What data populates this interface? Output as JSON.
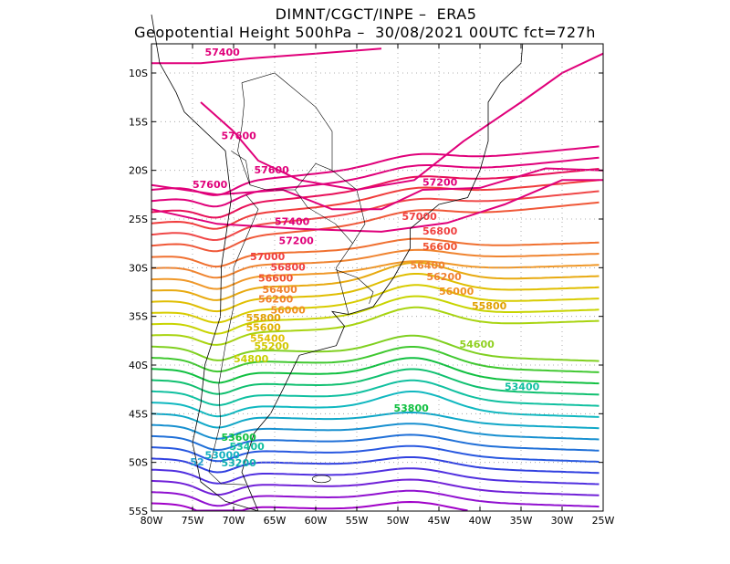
{
  "header": {
    "line1": "DIMNT/CGCT/INPE –  ERA5",
    "line2": "Geopotential Height 500hPa –  30/08/2021 00UTC fct=727h"
  },
  "axes": {
    "lon_labels": [
      "80W",
      "75W",
      "70W",
      "65W",
      "60W",
      "55W",
      "50W",
      "45W",
      "40W",
      "35W",
      "30W",
      "25W"
    ],
    "lat_labels": [
      "10S",
      "15S",
      "20S",
      "25S",
      "30S",
      "35S",
      "40S",
      "45S",
      "50S",
      "55S"
    ],
    "lon_range": [
      -80,
      -25
    ],
    "lat_range": [
      -55,
      -7
    ],
    "grid": "dotted"
  },
  "map": {
    "variable": "Geopotential Height 500hPa",
    "contour_labels": [
      {
        "text": "57400",
        "value": 57400,
        "color": "#e0007a",
        "lon": -73.5,
        "lat": -8.2
      },
      {
        "text": "57600",
        "value": 57600,
        "color": "#e0007a",
        "lon": -71.5,
        "lat": -16.8
      },
      {
        "text": "57600",
        "value": 57600,
        "color": "#e0007a",
        "lon": -67.5,
        "lat": -20.3
      },
      {
        "text": "57600",
        "value": 57600,
        "color": "#e0007a",
        "lon": -75.0,
        "lat": -21.8
      },
      {
        "text": "57400",
        "value": 57400,
        "color": "#e0007a",
        "lon": -65.0,
        "lat": -25.6
      },
      {
        "text": "57200",
        "value": 57200,
        "color": "#e0007a",
        "lon": -47.0,
        "lat": -21.6
      },
      {
        "text": "57200",
        "value": 57200,
        "color": "#e0007a",
        "lon": -64.5,
        "lat": -27.6
      },
      {
        "text": "57000",
        "value": 57000,
        "color": "#f04040",
        "lon": -49.5,
        "lat": -25.1
      },
      {
        "text": "57000",
        "value": 57000,
        "color": "#f04040",
        "lon": -68.0,
        "lat": -29.2
      },
      {
        "text": "56800",
        "value": 56800,
        "color": "#f04040",
        "lon": -47.0,
        "lat": -26.6
      },
      {
        "text": "56800",
        "value": 56800,
        "color": "#f04040",
        "lon": -65.5,
        "lat": -30.3
      },
      {
        "text": "56600",
        "value": 56600,
        "color": "#f05030",
        "lon": -47.0,
        "lat": -28.2
      },
      {
        "text": "56600",
        "value": 56600,
        "color": "#f05030",
        "lon": -67.0,
        "lat": -31.4
      },
      {
        "text": "56400",
        "value": 56400,
        "color": "#f08030",
        "lon": -48.5,
        "lat": -30.1
      },
      {
        "text": "56400",
        "value": 56400,
        "color": "#f08030",
        "lon": -66.5,
        "lat": -32.6
      },
      {
        "text": "56200",
        "value": 56200,
        "color": "#f08030",
        "lon": -46.5,
        "lat": -31.3
      },
      {
        "text": "56200",
        "value": 56200,
        "color": "#f08030",
        "lon": -67.0,
        "lat": -33.6
      },
      {
        "text": "56000",
        "value": 56000,
        "color": "#f09020",
        "lon": -45.0,
        "lat": -32.8
      },
      {
        "text": "56000",
        "value": 56000,
        "color": "#f09020",
        "lon": -65.5,
        "lat": -34.7
      },
      {
        "text": "55800",
        "value": 55800,
        "color": "#e0a000",
        "lon": -41.0,
        "lat": -34.3
      },
      {
        "text": "55800",
        "value": 55800,
        "color": "#e0a000",
        "lon": -68.5,
        "lat": -35.5
      },
      {
        "text": "55600",
        "value": 55600,
        "color": "#e0b000",
        "lon": -68.5,
        "lat": -36.5
      },
      {
        "text": "55400",
        "value": 55400,
        "color": "#e0c000",
        "lon": -68.0,
        "lat": -37.6
      },
      {
        "text": "55200",
        "value": 55200,
        "color": "#d0c800",
        "lon": -67.5,
        "lat": -38.4
      },
      {
        "text": "54800",
        "value": 54800,
        "color": "#c8d000",
        "lon": -70.0,
        "lat": -39.7
      },
      {
        "text": "54600",
        "value": 54600,
        "color": "#90d020",
        "lon": -42.5,
        "lat": -38.2
      },
      {
        "text": "53400",
        "value": 53400,
        "color": "#10c0a0",
        "lon": -37.0,
        "lat": -42.6
      },
      {
        "text": "53800",
        "value": 53800,
        "color": "#10c040",
        "lon": -50.5,
        "lat": -44.8
      },
      {
        "text": "53600",
        "value": 53600,
        "color": "#10c040",
        "lon": -71.5,
        "lat": -47.8
      },
      {
        "text": "53400",
        "value": 53400,
        "color": "#10c0a0",
        "lon": -70.5,
        "lat": -48.7
      },
      {
        "text": "53000",
        "value": 53000,
        "color": "#10b0c0",
        "lon": -73.5,
        "lat": -49.6
      },
      {
        "text": "53200",
        "value": 53200,
        "color": "#10b0b0",
        "lon": -71.5,
        "lat": -50.4
      },
      {
        "text": "52",
        "value": 52,
        "color": "#20a0d0",
        "lon": -75.3,
        "lat": -50.3
      }
    ]
  },
  "colors": {
    "high": "#e0007a",
    "mid_warm": "#f04040",
    "orange": "#f08030",
    "yellow": "#e0c000",
    "green": "#10c040",
    "teal": "#10c0a0",
    "blue": "#2040e0",
    "purple": "#a000d0"
  }
}
